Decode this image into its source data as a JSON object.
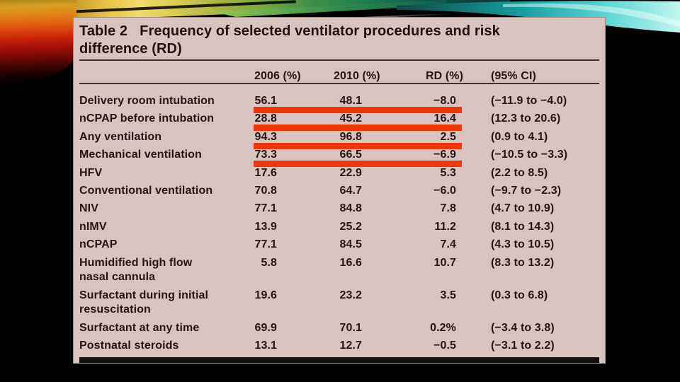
{
  "table": {
    "title_label": "Table 2",
    "title_line1": "Frequency of selected ventilator procedures and risk",
    "title_line2": "difference (RD)",
    "header": {
      "col_2006": "2006 (%)",
      "col_2010": "2010 (%)",
      "col_rd": "RD (%)",
      "col_ci": "(95% CI)"
    },
    "rows": [
      {
        "procedure": "Delivery room intubation",
        "v2006": "56.1",
        "v2010": "48.1",
        "rd": "−8.0",
        "ci": "(−11.9 to −4.0)",
        "highlight": true
      },
      {
        "procedure": "nCPAP before intubation",
        "v2006": "28.8",
        "v2010": "45.2",
        "rd": "16.4",
        "ci": "(12.3 to 20.6)",
        "highlight": true
      },
      {
        "procedure": "Any ventilation",
        "v2006": "94.3",
        "v2010": "96.8",
        "rd": "2.5",
        "ci": "(0.9 to 4.1)",
        "highlight": true
      },
      {
        "procedure": "Mechanical ventilation",
        "v2006": "73.3",
        "v2010": "66.5",
        "rd": "−6.9",
        "ci": "(−10.5 to −3.3)",
        "highlight": true
      },
      {
        "procedure": "HFV",
        "v2006": "17.6",
        "v2010": "22.9",
        "rd": "5.3",
        "ci": "(2.2 to 8.5)",
        "highlight": false
      },
      {
        "procedure": "Conventional ventilation",
        "v2006": "70.8",
        "v2010": "64.7",
        "rd": "−6.0",
        "ci": "(−9.7 to −2.3)",
        "highlight": false
      },
      {
        "procedure": "NIV",
        "v2006": "77.1",
        "v2010": "84.8",
        "rd": "7.8",
        "ci": "(4.7 to 10.9)",
        "highlight": false
      },
      {
        "procedure": "nIMV",
        "v2006": "13.9",
        "v2010": "25.2",
        "rd": "11.2",
        "ci": "(8.1 to 14.3)",
        "highlight": false
      },
      {
        "procedure": "nCPAP",
        "v2006": "77.1",
        "v2010": "84.5",
        "rd": "7.4",
        "ci": "(4.3 to 10.5)",
        "highlight": false
      },
      {
        "procedure": "Humidified high flow\nnasal cannula",
        "v2006": "5.8",
        "v2010": "16.6",
        "rd": "10.7",
        "ci": "(8.3 to 13.2)",
        "highlight": false
      },
      {
        "procedure": "Surfactant during initial\nresuscitation",
        "v2006": "19.6",
        "v2010": "23.2",
        "rd": "3.5",
        "ci": "(0.3 to 6.8)",
        "highlight": false
      },
      {
        "procedure": "Surfactant at any time",
        "v2006": "69.9",
        "v2010": "70.1",
        "rd": "0.2%",
        "ci": "(−3.4 to 3.8)",
        "highlight": false
      },
      {
        "procedure": "Postnatal steroids",
        "v2006": "13.1",
        "v2010": "12.7",
        "rd": "−0.5",
        "ci": "(−3.1 to 2.2)",
        "highlight": false
      }
    ]
  },
  "colors": {
    "slide_bg": "#000000",
    "table_bg": "#d9c3be",
    "table_text": "#241612",
    "highlight_bar": "#f03708",
    "banner_gold": "#e8c848",
    "banner_green": "#3c9048",
    "banner_cyan": "#5fd8d4"
  }
}
